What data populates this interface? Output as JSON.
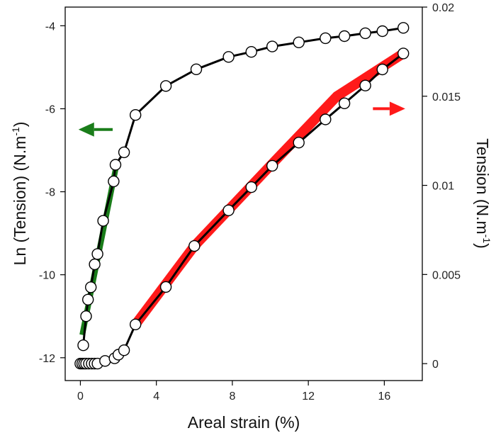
{
  "chart_data": {
    "type": "scatter",
    "xlabel": "Areal strain (%)",
    "ylabel_left": {
      "base": "Ln (Tension) (N.m",
      "sup": "-1",
      "close": ")"
    },
    "ylabel_right": {
      "base": "Tension (N.m",
      "sup": "-1",
      "close": ")"
    },
    "xlim": [
      -0.8,
      18.0
    ],
    "ylim_left": [
      -12.55,
      -3.55
    ],
    "ylim_right": [
      -0.00095,
      0.02
    ],
    "x_ticks": [
      0,
      4,
      8,
      12,
      16
    ],
    "x_tick_labels": [
      "0",
      "4",
      "8",
      "12",
      "16"
    ],
    "y_left_ticks": [
      -12,
      -10,
      -8,
      -6,
      -4
    ],
    "y_left_tick_labels": [
      "-12",
      "-10",
      "-8",
      "-6",
      "-4"
    ],
    "y_right_ticks": [
      0,
      0.005,
      0.01,
      0.015,
      0.02
    ],
    "y_right_tick_labels": [
      "0",
      "0.005",
      "0.01",
      "0.015",
      "0.02"
    ],
    "series": [
      {
        "name": "Ln (Tension)",
        "axis": "left",
        "line_color": "#000000",
        "x": [
          0.15,
          0.3,
          0.4,
          0.55,
          0.75,
          0.9,
          1.2,
          1.75,
          1.85,
          2.3,
          2.9,
          4.5,
          6.1,
          7.8,
          9.0,
          10.1,
          11.5,
          12.9,
          13.9,
          15.0,
          15.9,
          17.0
        ],
        "y": [
          -11.7,
          -11.0,
          -10.6,
          -10.3,
          -9.75,
          -9.5,
          -8.7,
          -7.75,
          -7.35,
          -7.05,
          -6.15,
          -5.45,
          -5.05,
          -4.75,
          -4.63,
          -4.5,
          -4.4,
          -4.3,
          -4.25,
          -4.18,
          -4.13,
          -4.05
        ]
      },
      {
        "name": "Tension",
        "axis": "right",
        "line_color": "#000000",
        "x": [
          0.0,
          0.1,
          0.2,
          0.3,
          0.45,
          0.6,
          0.75,
          0.9,
          1.3,
          1.8,
          2.0,
          2.3,
          2.9,
          4.5,
          6.0,
          7.8,
          9.0,
          10.1,
          11.5,
          12.9,
          13.9,
          15.0,
          15.9,
          17.0
        ],
        "y": [
          0.0,
          0.0,
          0.0,
          0.0,
          0.0,
          0.0,
          0.0,
          0.0,
          0.00015,
          0.0003,
          0.0005,
          0.00075,
          0.0022,
          0.0043,
          0.0066,
          0.0086,
          0.0099,
          0.0111,
          0.0124,
          0.0137,
          0.0146,
          0.0156,
          0.0165,
          0.0174
        ]
      }
    ],
    "fits": [
      {
        "name": "green-fit",
        "axis": "left",
        "color": "#1a7d1a",
        "x": [
          0.1,
          1.9
        ],
        "y": [
          -11.45,
          -7.35
        ]
      },
      {
        "name": "red-fit",
        "axis": "right",
        "color": "#ff1a1a",
        "points": [
          [
            2.9,
            0.0022
          ],
          [
            6.0,
            0.0066
          ],
          [
            10.0,
            0.0111
          ],
          [
            13.5,
            0.015
          ],
          [
            17.0,
            0.0174
          ]
        ]
      }
    ],
    "annotations": [
      {
        "name": "green-arrow-left",
        "color": "#1a7d1a",
        "direction": "left",
        "axis": "left",
        "x_from": 1.7,
        "x_to": -0.1,
        "y": -6.5
      },
      {
        "name": "red-arrow-right",
        "color": "#ff1a1a",
        "direction": "right",
        "axis": "right",
        "x_from": 15.4,
        "x_to": 17.1,
        "y": 0.0143
      }
    ]
  }
}
